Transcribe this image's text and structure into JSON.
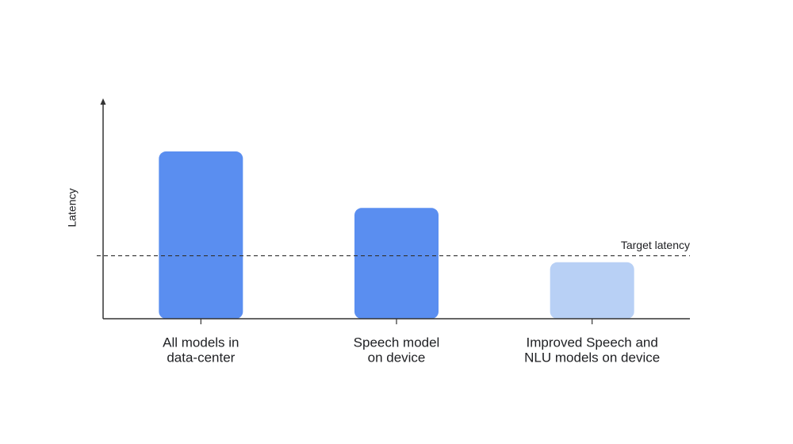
{
  "chart_data": {
    "type": "bar",
    "y_label": "Latency",
    "categories": [
      [
        "All models in",
        "data-center"
      ],
      [
        "Speech model",
        "on device"
      ],
      [
        "Improved Speech and",
        "NLU models on device"
      ]
    ],
    "values": [
      77,
      51,
      26
    ],
    "colors": [
      "#5a8ef0",
      "#5a8ef0",
      "#b8d0f5"
    ],
    "ylim": [
      0,
      100
    ],
    "target": {
      "label": "Target latency",
      "value": 29
    }
  }
}
